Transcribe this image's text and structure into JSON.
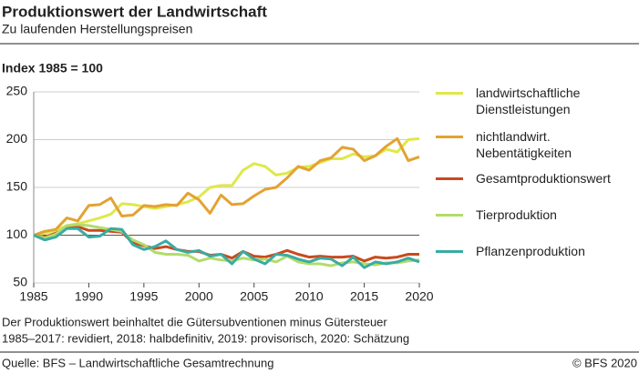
{
  "chart_data": {
    "type": "line",
    "title": "Produktionswert der Landwirtschaft",
    "subtitle": "Zu laufenden Herstellungspreisen",
    "y_label": "Index 1985 = 100",
    "x": [
      1985,
      1986,
      1987,
      1988,
      1989,
      1990,
      1991,
      1992,
      1993,
      1994,
      1995,
      1996,
      1997,
      1998,
      1999,
      2000,
      2001,
      2002,
      2003,
      2004,
      2005,
      2006,
      2007,
      2008,
      2009,
      2010,
      2011,
      2012,
      2013,
      2014,
      2015,
      2016,
      2017,
      2018,
      2019,
      2020
    ],
    "series": [
      {
        "name": "landwirtschaftliche Dienstleistungen",
        "color": "#dfe84a",
        "values": [
          100,
          102,
          105,
          110,
          112,
          115,
          118,
          122,
          133,
          132,
          130,
          128,
          130,
          132,
          135,
          140,
          150,
          152,
          152,
          168,
          175,
          172,
          163,
          165,
          171,
          172,
          176,
          180,
          180,
          185,
          182,
          183,
          190,
          187,
          200,
          201
        ]
      },
      {
        "name": "nichtlandwirt. Nebentätigkeiten",
        "color": "#e3a232",
        "values": [
          100,
          104,
          106,
          118,
          115,
          131,
          132,
          139,
          120,
          121,
          131,
          130,
          132,
          131,
          144,
          137,
          123,
          142,
          132,
          133,
          141,
          148,
          150,
          160,
          172,
          168,
          178,
          181,
          192,
          190,
          178,
          183,
          193,
          201,
          178,
          182
        ]
      },
      {
        "name": "Gesamtproduktionswert",
        "color": "#c94a1e",
        "values": [
          100,
          98,
          102,
          108,
          109,
          105,
          105,
          104,
          103,
          92,
          89,
          86,
          88,
          85,
          83,
          83,
          79,
          80,
          76,
          83,
          78,
          77,
          80,
          84,
          80,
          77,
          78,
          77,
          77,
          78,
          73,
          77,
          76,
          77,
          80,
          80
        ]
      },
      {
        "name": "Tierproduktion",
        "color": "#b2dc6a",
        "values": [
          100,
          97,
          101,
          110,
          111,
          110,
          108,
          106,
          104,
          95,
          90,
          82,
          80,
          80,
          79,
          73,
          76,
          74,
          73,
          76,
          74,
          75,
          72,
          78,
          72,
          70,
          70,
          68,
          71,
          72,
          70,
          69,
          71,
          71,
          73,
          74
        ]
      },
      {
        "name": "Pflanzenproduktion",
        "color": "#3aaba2",
        "values": [
          100,
          95,
          98,
          107,
          107,
          98,
          99,
          107,
          106,
          90,
          85,
          88,
          94,
          85,
          82,
          84,
          78,
          80,
          70,
          83,
          75,
          70,
          80,
          79,
          75,
          72,
          76,
          75,
          68,
          77,
          66,
          72,
          70,
          72,
          76,
          72
        ]
      }
    ],
    "xlim": [
      1985,
      2020
    ],
    "xticks": [
      1985,
      1990,
      1995,
      2000,
      2005,
      2010,
      2015,
      2020
    ],
    "ylim": [
      50,
      250
    ],
    "yticks": [
      50,
      100,
      150,
      200,
      250
    ],
    "reference_line": 100,
    "grid": true,
    "notes": [
      "Der Produktionswert beinhaltet die Gütersubventionen minus Gütersteuer",
      "1985–2017: revidiert, 2018: halbdefinitiv, 2019: provisorisch, 2020: Schätzung"
    ],
    "source": "Quelle: BFS – Landwirtschaftliche Gesamtrechnung",
    "copyright": "© BFS 2020"
  }
}
